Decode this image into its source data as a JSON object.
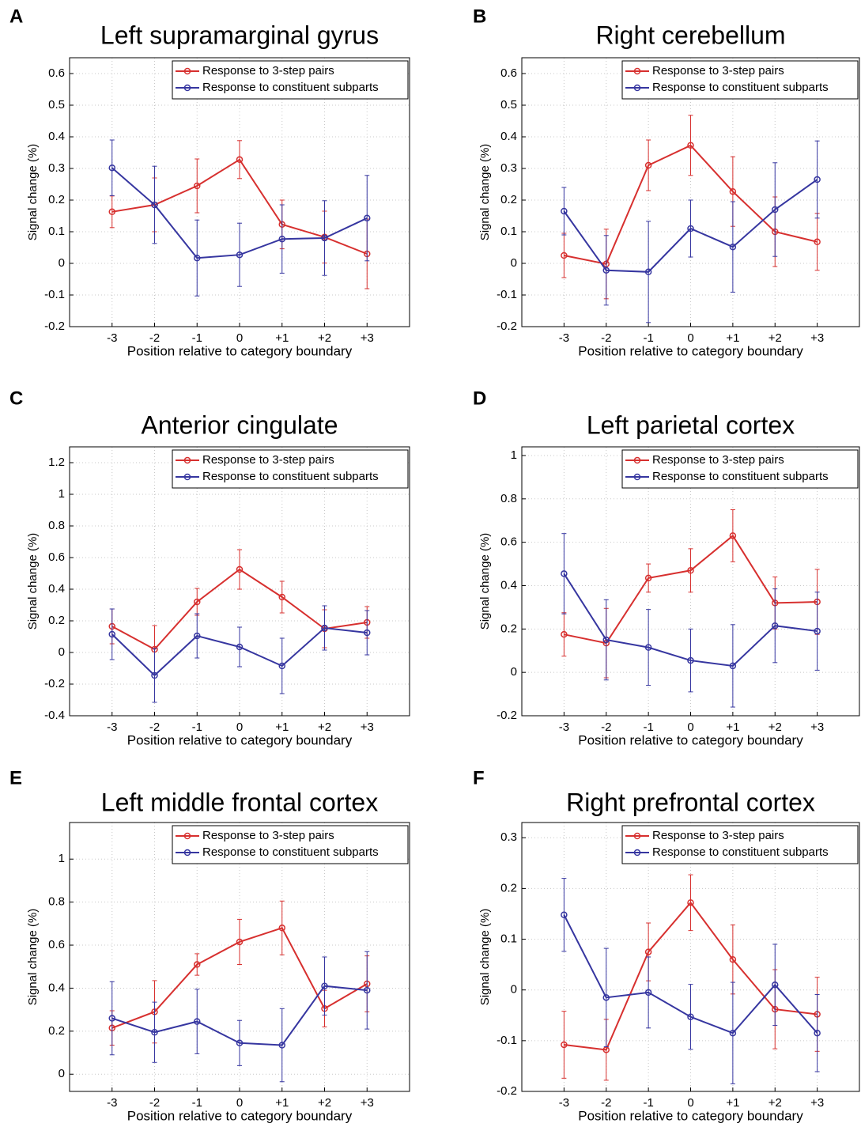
{
  "chart_data": [
    {
      "type": "line",
      "panel_label": "A",
      "title": "Left supramarginal gyrus",
      "xlabel": "Position relative to category boundary",
      "ylabel": "Signal change (%)",
      "x": [
        -3,
        -2,
        -1,
        0,
        1,
        2,
        3
      ],
      "xlim": [
        -4,
        4
      ],
      "xticks": [
        -3,
        -2,
        -1,
        0,
        {
          "value": 1,
          "label": "+1"
        },
        {
          "value": 2,
          "label": "+2"
        },
        {
          "value": 3,
          "label": "+3"
        }
      ],
      "ylim": [
        -0.2,
        0.65
      ],
      "yticks": [
        -0.2,
        -0.1,
        0,
        0.1,
        0.2,
        0.3,
        0.4,
        0.5,
        0.6
      ],
      "grid": true,
      "legend": "upper right",
      "series": [
        {
          "name": "Response to 3-step pairs",
          "color": "#d7302f",
          "values": [
            0.163,
            0.185,
            0.245,
            0.328,
            0.123,
            0.083,
            0.03
          ],
          "errors": [
            0.05,
            0.085,
            0.085,
            0.06,
            0.077,
            0.082,
            0.11
          ]
        },
        {
          "name": "Response to constituent subparts",
          "color": "#3636a0",
          "values": [
            0.302,
            0.185,
            0.017,
            0.027,
            0.077,
            0.08,
            0.143
          ],
          "errors": [
            0.088,
            0.122,
            0.12,
            0.1,
            0.108,
            0.118,
            0.135
          ]
        }
      ]
    },
    {
      "type": "line",
      "panel_label": "B",
      "title": "Right cerebellum",
      "xlabel": "Position relative to category boundary",
      "ylabel": "Signal change (%)",
      "x": [
        -3,
        -2,
        -1,
        0,
        1,
        2,
        3
      ],
      "xlim": [
        -4,
        4
      ],
      "xticks": [
        -3,
        -2,
        -1,
        0,
        {
          "value": 1,
          "label": "+1"
        },
        {
          "value": 2,
          "label": "+2"
        },
        {
          "value": 3,
          "label": "+3"
        }
      ],
      "ylim": [
        -0.2,
        0.65
      ],
      "yticks": [
        -0.2,
        -0.1,
        0,
        0.1,
        0.2,
        0.3,
        0.4,
        0.5,
        0.6
      ],
      "grid": true,
      "legend": "upper right",
      "series": [
        {
          "name": "Response to 3-step pairs",
          "color": "#d7302f",
          "values": [
            0.025,
            -0.002,
            0.31,
            0.373,
            0.227,
            0.1,
            0.068
          ],
          "errors": [
            0.07,
            0.11,
            0.08,
            0.095,
            0.11,
            0.11,
            0.09
          ]
        },
        {
          "name": "Response to constituent subparts",
          "color": "#3636a0",
          "values": [
            0.165,
            -0.022,
            -0.027,
            0.11,
            0.052,
            0.17,
            0.265
          ],
          "errors": [
            0.075,
            0.11,
            0.16,
            0.09,
            0.143,
            0.148,
            0.122
          ]
        }
      ]
    },
    {
      "type": "line",
      "panel_label": "C",
      "title": "Anterior cingulate",
      "xlabel": "Position relative to category boundary",
      "ylabel": "Signal change (%)",
      "x": [
        -3,
        -2,
        -1,
        0,
        1,
        2,
        3
      ],
      "xlim": [
        -4,
        4
      ],
      "xticks": [
        -3,
        -2,
        -1,
        0,
        {
          "value": 1,
          "label": "+1"
        },
        {
          "value": 2,
          "label": "+2"
        },
        {
          "value": 3,
          "label": "+3"
        }
      ],
      "ylim": [
        -0.4,
        1.3
      ],
      "yticks": [
        -0.4,
        -0.2,
        0,
        0.2,
        0.4,
        0.6,
        0.8,
        1,
        1.2
      ],
      "grid": true,
      "legend": "upper right",
      "series": [
        {
          "name": "Response to 3-step pairs",
          "color": "#d7302f",
          "values": [
            0.165,
            0.02,
            0.32,
            0.525,
            0.35,
            0.15,
            0.19
          ],
          "errors": [
            0.11,
            0.15,
            0.085,
            0.125,
            0.1,
            0.12,
            0.1
          ]
        },
        {
          "name": "Response to constituent subparts",
          "color": "#3636a0",
          "values": [
            0.115,
            -0.145,
            0.105,
            0.035,
            -0.085,
            0.155,
            0.125
          ],
          "errors": [
            0.16,
            0.17,
            0.14,
            0.125,
            0.175,
            0.14,
            0.14
          ]
        }
      ]
    },
    {
      "type": "line",
      "panel_label": "D",
      "title": "Left parietal cortex",
      "xlabel": "Position relative to category boundary",
      "ylabel": "Signal change (%)",
      "x": [
        -3,
        -2,
        -1,
        0,
        1,
        2,
        3
      ],
      "xlim": [
        -4,
        4
      ],
      "xticks": [
        -3,
        -2,
        -1,
        0,
        {
          "value": 1,
          "label": "+1"
        },
        {
          "value": 2,
          "label": "+2"
        },
        {
          "value": 3,
          "label": "+3"
        }
      ],
      "ylim": [
        -0.2,
        1.04
      ],
      "yticks": [
        -0.2,
        0,
        0.2,
        0.4,
        0.6,
        0.8,
        1
      ],
      "grid": true,
      "legend": "upper right",
      "series": [
        {
          "name": "Response to 3-step pairs",
          "color": "#d7302f",
          "values": [
            0.175,
            0.135,
            0.435,
            0.47,
            0.63,
            0.32,
            0.325
          ],
          "errors": [
            0.1,
            0.16,
            0.065,
            0.1,
            0.12,
            0.12,
            0.15
          ]
        },
        {
          "name": "Response to constituent subparts",
          "color": "#3636a0",
          "values": [
            0.455,
            0.15,
            0.115,
            0.055,
            0.03,
            0.215,
            0.19
          ],
          "errors": [
            0.185,
            0.185,
            0.175,
            0.145,
            0.19,
            0.17,
            0.18
          ]
        }
      ]
    },
    {
      "type": "line",
      "panel_label": "E",
      "title": "Left middle frontal cortex",
      "xlabel": "Position relative to category boundary",
      "ylabel": "Signal change (%)",
      "x": [
        -3,
        -2,
        -1,
        0,
        1,
        2,
        3
      ],
      "xlim": [
        -4,
        4
      ],
      "xticks": [
        -3,
        -2,
        -1,
        0,
        {
          "value": 1,
          "label": "+1"
        },
        {
          "value": 2,
          "label": "+2"
        },
        {
          "value": 3,
          "label": "+3"
        }
      ],
      "ylim": [
        -0.08,
        1.17
      ],
      "yticks": [
        0,
        0.2,
        0.4,
        0.6,
        0.8,
        1
      ],
      "grid": true,
      "legend": "upper right",
      "series": [
        {
          "name": "Response to 3-step pairs",
          "color": "#d7302f",
          "values": [
            0.215,
            0.29,
            0.51,
            0.615,
            0.68,
            0.305,
            0.42
          ],
          "errors": [
            0.08,
            0.145,
            0.05,
            0.105,
            0.125,
            0.085,
            0.13
          ]
        },
        {
          "name": "Response to constituent subparts",
          "color": "#3636a0",
          "values": [
            0.26,
            0.195,
            0.245,
            0.145,
            0.135,
            0.41,
            0.39
          ],
          "errors": [
            0.17,
            0.14,
            0.15,
            0.105,
            0.17,
            0.135,
            0.18
          ]
        }
      ]
    },
    {
      "type": "line",
      "panel_label": "F",
      "title": "Right prefrontal cortex",
      "xlabel": "Position relative to category boundary",
      "ylabel": "Signal change (%)",
      "x": [
        -3,
        -2,
        -1,
        0,
        1,
        2,
        3
      ],
      "xlim": [
        -4,
        4
      ],
      "xticks": [
        -3,
        -2,
        -1,
        0,
        {
          "value": 1,
          "label": "+1"
        },
        {
          "value": 2,
          "label": "+2"
        },
        {
          "value": 3,
          "label": "+3"
        }
      ],
      "ylim": [
        -0.2,
        0.33
      ],
      "yticks": [
        -0.2,
        -0.1,
        0,
        0.1,
        0.2,
        0.3
      ],
      "grid": true,
      "legend": "upper right",
      "series": [
        {
          "name": "Response to 3-step pairs",
          "color": "#d7302f",
          "values": [
            -0.108,
            -0.118,
            0.075,
            0.172,
            0.06,
            -0.038,
            -0.048
          ],
          "errors": [
            0.066,
            0.06,
            0.057,
            0.055,
            0.068,
            0.078,
            0.073
          ]
        },
        {
          "name": "Response to constituent subparts",
          "color": "#3636a0",
          "values": [
            0.148,
            -0.015,
            -0.005,
            -0.053,
            -0.085,
            0.01,
            -0.085
          ],
          "errors": [
            0.072,
            0.097,
            0.07,
            0.064,
            0.1,
            0.08,
            0.076
          ]
        }
      ]
    }
  ]
}
